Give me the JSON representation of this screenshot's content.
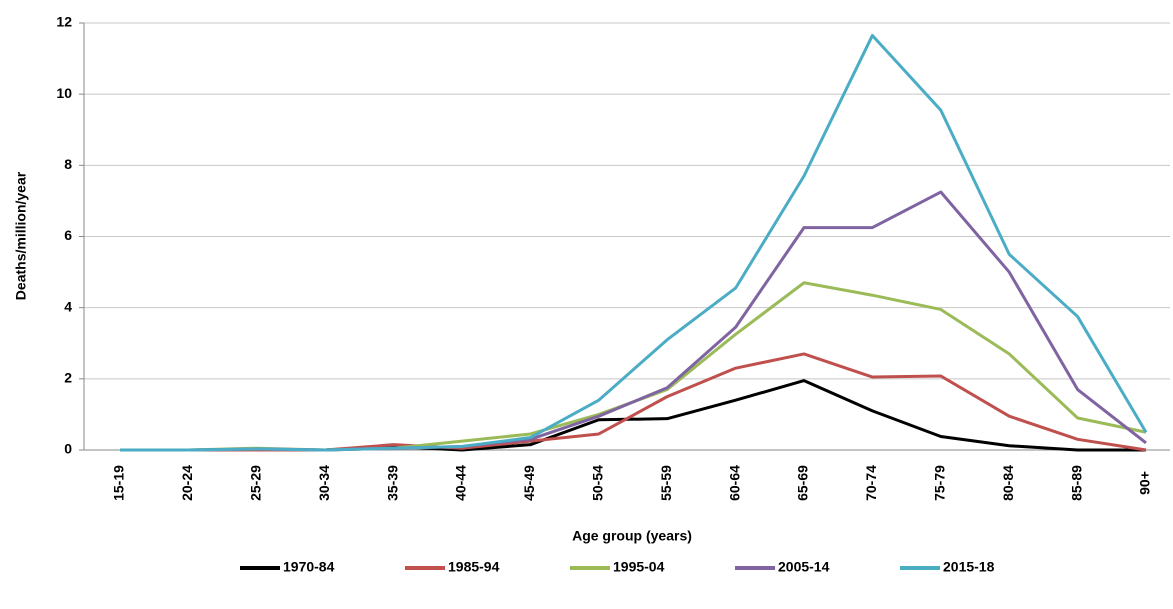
{
  "chart_data": {
    "type": "line",
    "x_label": "Age group (years)",
    "y_label": "Deaths/million/year",
    "categories": [
      "15-19",
      "20-24",
      "25-29",
      "30-34",
      "35-39",
      "40-44",
      "45-49",
      "50-54",
      "55-59",
      "60-64",
      "65-69",
      "70-74",
      "75-79",
      "80-84",
      "85-89",
      "90+"
    ],
    "series": [
      {
        "name": "1970-84",
        "color": "#000000",
        "values": [
          0,
          0,
          0,
          0,
          0.1,
          0,
          0.15,
          0.85,
          0.88,
          1.4,
          1.95,
          1.1,
          0.38,
          0.12,
          0,
          0
        ]
      },
      {
        "name": "1985-94",
        "color": "#c0504d",
        "values": [
          0,
          0,
          0,
          0,
          0.15,
          0.05,
          0.25,
          0.45,
          1.5,
          2.3,
          2.7,
          2.05,
          2.08,
          0.95,
          0.3,
          0
        ]
      },
      {
        "name": "1995-04",
        "color": "#9bbb59",
        "values": [
          0,
          0,
          0.05,
          0,
          0.05,
          0.25,
          0.45,
          1.0,
          1.7,
          3.25,
          4.7,
          4.35,
          3.95,
          2.7,
          0.9,
          0.5
        ]
      },
      {
        "name": "2005-14",
        "color": "#8064a2",
        "values": [
          0,
          0,
          0.03,
          0,
          0.05,
          0.1,
          0.3,
          0.95,
          1.75,
          3.45,
          6.25,
          6.25,
          7.25,
          5.0,
          1.7,
          0.2
        ]
      },
      {
        "name": "2015-18",
        "color": "#4bacc6",
        "values": [
          0,
          0,
          0.03,
          0,
          0.05,
          0.1,
          0.35,
          1.4,
          3.1,
          4.55,
          7.7,
          11.65,
          9.55,
          5.5,
          3.75,
          0.5
        ]
      }
    ],
    "ylim": [
      0,
      12
    ],
    "yticks": [
      0,
      2,
      4,
      6,
      8,
      10,
      12
    ],
    "grid": true,
    "legend": "bottom"
  }
}
